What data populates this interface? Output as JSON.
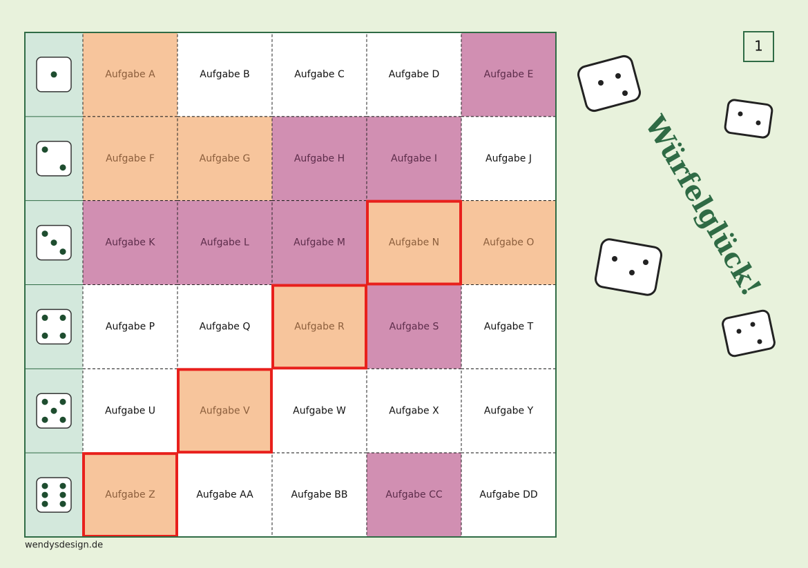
{
  "page_number": "1",
  "title": "Würfelglück!",
  "footer": "wendysdesign.de",
  "board": {
    "rows": [
      {
        "die": 1,
        "cells": [
          {
            "label": "Aufgabe A",
            "fill": "#f7c59c",
            "text": "#8b5e3c",
            "highlight": false
          },
          {
            "label": "Aufgabe B",
            "fill": "#ffffff",
            "text": "#111111",
            "highlight": false
          },
          {
            "label": "Aufgabe C",
            "fill": "#ffffff",
            "text": "#111111",
            "highlight": false
          },
          {
            "label": "Aufgabe D",
            "fill": "#ffffff",
            "text": "#111111",
            "highlight": false
          },
          {
            "label": "Aufgabe E",
            "fill": "#d18fb2",
            "text": "#5c2c4a",
            "highlight": false
          }
        ]
      },
      {
        "die": 2,
        "cells": [
          {
            "label": "Aufgabe F",
            "fill": "#f7c59c",
            "text": "#8b5e3c",
            "highlight": false
          },
          {
            "label": "Aufgabe G",
            "fill": "#f7c59c",
            "text": "#8b5e3c",
            "highlight": false
          },
          {
            "label": "Aufgabe H",
            "fill": "#d18fb2",
            "text": "#5c2c4a",
            "highlight": false
          },
          {
            "label": "Aufgabe I",
            "fill": "#d18fb2",
            "text": "#5c2c4a",
            "highlight": false
          },
          {
            "label": "Aufgabe J",
            "fill": "#ffffff",
            "text": "#111111",
            "highlight": false
          }
        ]
      },
      {
        "die": 3,
        "cells": [
          {
            "label": "Aufgabe K",
            "fill": "#d18fb2",
            "text": "#5c2c4a",
            "highlight": false
          },
          {
            "label": "Aufgabe L",
            "fill": "#d18fb2",
            "text": "#5c2c4a",
            "highlight": false
          },
          {
            "label": "Aufgabe M",
            "fill": "#d18fb2",
            "text": "#5c2c4a",
            "highlight": false
          },
          {
            "label": "Aufgabe N",
            "fill": "#f7c59c",
            "text": "#8b5e3c",
            "highlight": true
          },
          {
            "label": "Aufgabe O",
            "fill": "#f7c59c",
            "text": "#8b5e3c",
            "highlight": false
          }
        ]
      },
      {
        "die": 4,
        "cells": [
          {
            "label": "Aufgabe P",
            "fill": "#ffffff",
            "text": "#111111",
            "highlight": false
          },
          {
            "label": "Aufgabe Q",
            "fill": "#ffffff",
            "text": "#111111",
            "highlight": false
          },
          {
            "label": "Aufgabe R",
            "fill": "#f7c59c",
            "text": "#8b5e3c",
            "highlight": true
          },
          {
            "label": "Aufgabe S",
            "fill": "#d18fb2",
            "text": "#5c2c4a",
            "highlight": false
          },
          {
            "label": "Aufgabe T",
            "fill": "#ffffff",
            "text": "#111111",
            "highlight": false
          }
        ]
      },
      {
        "die": 5,
        "cells": [
          {
            "label": "Aufgabe U",
            "fill": "#ffffff",
            "text": "#111111",
            "highlight": false
          },
          {
            "label": "Aufgabe V",
            "fill": "#f7c59c",
            "text": "#8b5e3c",
            "highlight": true
          },
          {
            "label": "Aufgabe W",
            "fill": "#ffffff",
            "text": "#111111",
            "highlight": false
          },
          {
            "label": "Aufgabe X",
            "fill": "#ffffff",
            "text": "#111111",
            "highlight": false
          },
          {
            "label": "Aufgabe Y",
            "fill": "#ffffff",
            "text": "#111111",
            "highlight": false
          }
        ]
      },
      {
        "die": 6,
        "cells": [
          {
            "label": "Aufgabe Z",
            "fill": "#f7c59c",
            "text": "#8b5e3c",
            "highlight": true
          },
          {
            "label": "Aufgabe AA",
            "fill": "#ffffff",
            "text": "#111111",
            "highlight": false
          },
          {
            "label": "Aufgabe BB",
            "fill": "#ffffff",
            "text": "#111111",
            "highlight": false
          },
          {
            "label": "Aufgabe CC",
            "fill": "#d18fb2",
            "text": "#5c2c4a",
            "highlight": false
          },
          {
            "label": "Aufgabe DD",
            "fill": "#ffffff",
            "text": "#111111",
            "highlight": false
          }
        ]
      }
    ]
  }
}
